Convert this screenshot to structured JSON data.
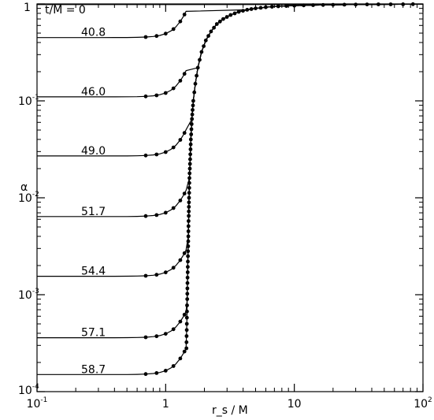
{
  "chart_data": {
    "type": "line",
    "title": "",
    "xlabel": "r_s / M",
    "ylabel": "α",
    "xscale": "log",
    "yscale": "log",
    "xlim": [
      0.1,
      100
    ],
    "ylim": [
      0.0001,
      1
    ],
    "grid": false,
    "x_ticks": [
      {
        "value": 0.1,
        "base": "10",
        "exp": "-1"
      },
      {
        "value": 1,
        "base": "1",
        "exp": ""
      },
      {
        "value": 10,
        "base": "10",
        "exp": ""
      },
      {
        "value": 100,
        "base": "10",
        "exp": "2"
      }
    ],
    "y_ticks": [
      {
        "value": 1,
        "base": "1",
        "exp": ""
      },
      {
        "value": 0.1,
        "base": "10",
        "exp": "-1"
      },
      {
        "value": 0.01,
        "base": "10",
        "exp": "-2"
      },
      {
        "value": 0.001,
        "base": "10",
        "exp": "-3"
      },
      {
        "value": 0.0001,
        "base": "10",
        "exp": "-4"
      }
    ],
    "curve_label_prefix": "t/M =",
    "series": [
      {
        "name": "0",
        "plateau": 1.0,
        "label_x": 0.3
      },
      {
        "name": "40.8",
        "plateau": 0.45,
        "label_x": 0.2
      },
      {
        "name": "46.0",
        "plateau": 0.11,
        "label_x": 0.2
      },
      {
        "name": "49.0",
        "plateau": 0.027,
        "label_x": 0.2
      },
      {
        "name": "51.7",
        "plateau": 0.0064,
        "label_x": 0.2
      },
      {
        "name": "54.4",
        "plateau": 0.00155,
        "label_x": 0.2
      },
      {
        "name": "57.1",
        "plateau": 0.00036,
        "label_x": 0.2
      },
      {
        "name": "58.7",
        "plateau": 0.00015,
        "label_x": 0.2
      }
    ],
    "outer_profile": [
      [
        1.45,
        0.00028
      ],
      [
        1.46,
        0.0005
      ],
      [
        1.47,
        0.0009
      ],
      [
        1.48,
        0.0015
      ],
      [
        1.49,
        0.0025
      ],
      [
        1.5,
        0.004
      ],
      [
        1.51,
        0.0065
      ],
      [
        1.52,
        0.01
      ],
      [
        1.53,
        0.016
      ],
      [
        1.55,
        0.025
      ],
      [
        1.57,
        0.04
      ],
      [
        1.6,
        0.065
      ],
      [
        1.64,
        0.1
      ],
      [
        1.7,
        0.15
      ],
      [
        1.78,
        0.22
      ],
      [
        1.9,
        0.32
      ],
      [
        2.05,
        0.42
      ],
      [
        2.25,
        0.52
      ],
      [
        2.5,
        0.62
      ],
      [
        2.8,
        0.7
      ],
      [
        3.2,
        0.77
      ],
      [
        3.7,
        0.83
      ],
      [
        4.3,
        0.87
      ],
      [
        5.0,
        0.9
      ],
      [
        6.0,
        0.925
      ],
      [
        7.5,
        0.945
      ],
      [
        10,
        0.96
      ],
      [
        14,
        0.972
      ],
      [
        20,
        0.98
      ],
      [
        30,
        0.986
      ],
      [
        45,
        0.99
      ],
      [
        70,
        0.993
      ],
      [
        100,
        0.995
      ]
    ]
  }
}
